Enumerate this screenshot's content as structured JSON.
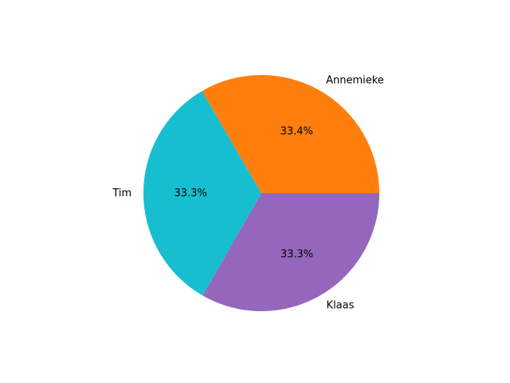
{
  "chart_data": {
    "type": "pie",
    "categories": [
      "Annemieke",
      "Tim",
      "Klaas"
    ],
    "values": [
      33.4,
      33.3,
      33.3
    ],
    "percent_labels": [
      "33.4%",
      "33.3%",
      "33.3%"
    ],
    "colors": [
      "#ff7f0e",
      "#17becf",
      "#9467bd"
    ],
    "start_angle_deg": 0,
    "direction": "counterclockwise",
    "title": "",
    "legend": "none"
  }
}
